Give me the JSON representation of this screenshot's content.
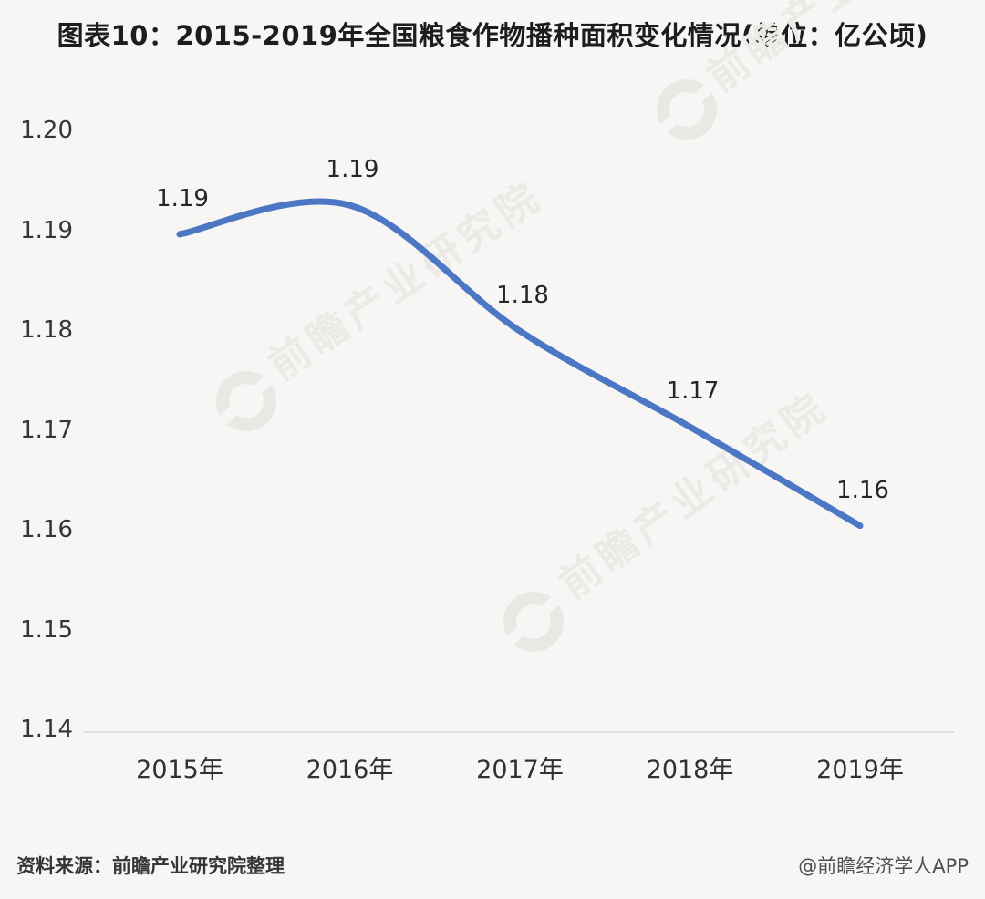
{
  "title": "图表10：2015-2019年全国粮食作物播种面积变化情况(单位：亿公顷)",
  "watermark": {
    "text": "前瞻产业研究院",
    "logo": "qianzhan-ring-logo",
    "color": "#ebeae6"
  },
  "footer": {
    "source": "资料来源：前瞻产业研究院整理",
    "credit": "@前瞻经济学人APP"
  },
  "chart_data": {
    "type": "line",
    "title": "图表10：2015-2019年全国粮食作物播种面积变化情况(单位：亿公顷)",
    "unit": "亿公顷",
    "categories": [
      "2015年",
      "2016年",
      "2017年",
      "2018年",
      "2019年"
    ],
    "point_labels": [
      "1.19",
      "1.19",
      "1.18",
      "1.17",
      "1.16"
    ],
    "values": [
      1.19,
      1.19,
      1.18,
      1.17,
      1.16
    ],
    "values_estimated": [
      1.1896,
      1.1925,
      1.1799,
      1.1703,
      1.1604
    ],
    "yticks": [
      "1.20",
      "1.19",
      "1.18",
      "1.17",
      "1.16",
      "1.15",
      "1.14"
    ],
    "ylim": [
      1.14,
      1.2
    ],
    "xlabel": "",
    "ylabel": "",
    "grid": false,
    "legend": "none",
    "smooth": true,
    "line_color": "#4b77c5",
    "axis_color": "#d8d7d4"
  }
}
